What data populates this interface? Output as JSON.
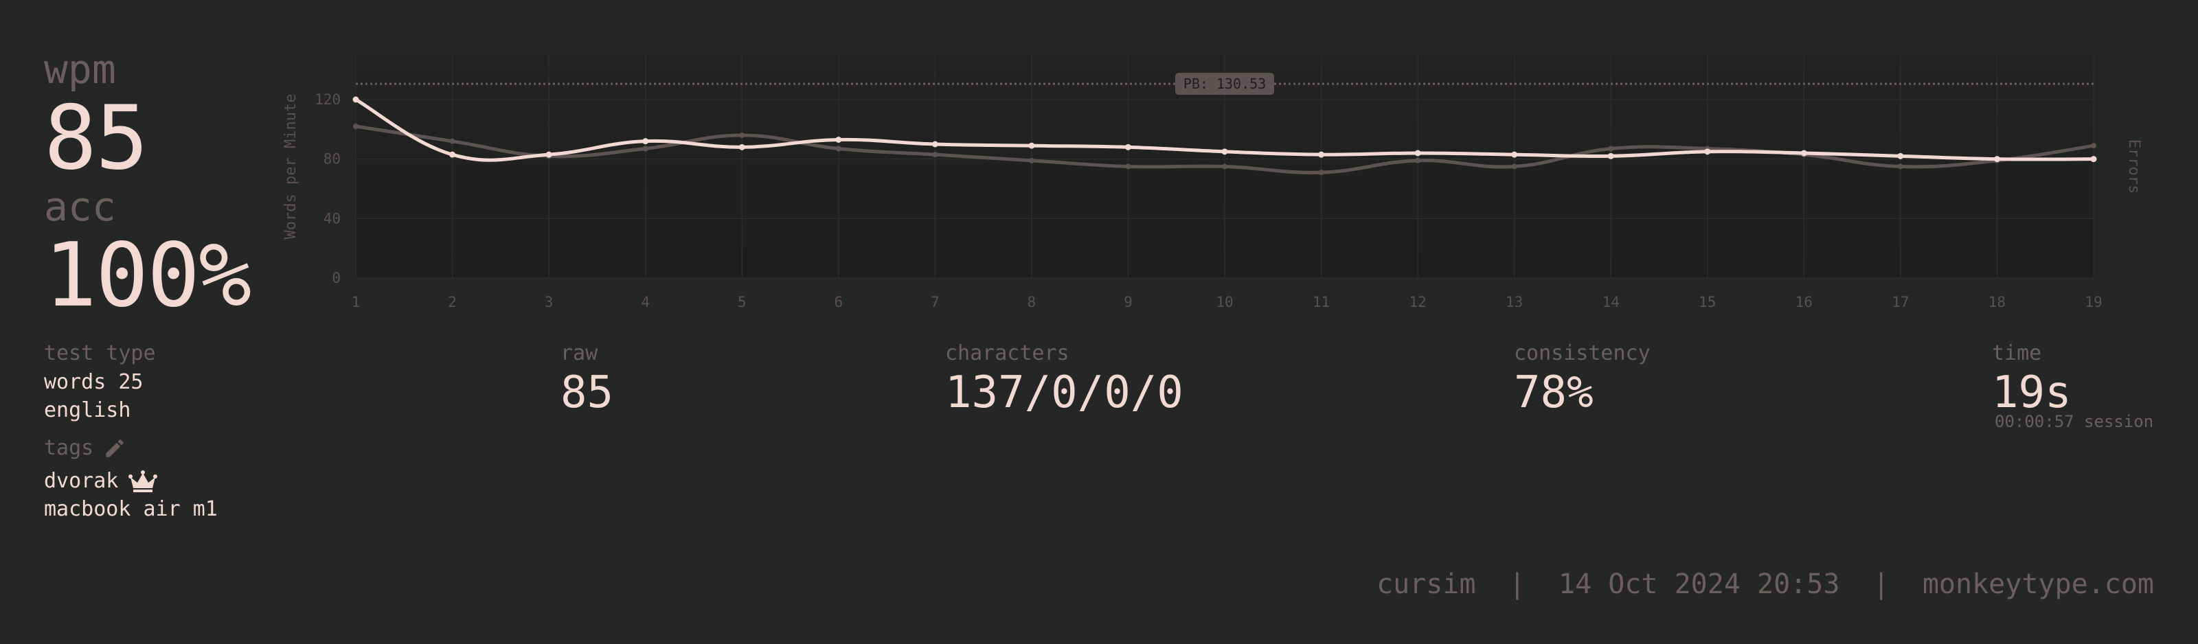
{
  "stats": {
    "wpm_label": "wpm",
    "wpm_value": "85",
    "acc_label": "acc",
    "acc_value": "100%"
  },
  "details": {
    "test_type_label": "test type",
    "test_type_line1": "words 25",
    "test_type_line2": "english",
    "tags_label": "tags",
    "tags": [
      "dvorak",
      "macbook air m1"
    ]
  },
  "metrics": {
    "raw_label": "raw",
    "raw_value": "85",
    "characters_label": "characters",
    "characters_value": "137/0/0/0",
    "consistency_label": "consistency",
    "consistency_value": "78%",
    "time_label": "time",
    "time_value": "19s",
    "session_value": "00:00:57 session"
  },
  "footer": {
    "user": "cursim",
    "separator": "|",
    "datetime": "14 Oct 2024 20:53",
    "site": "monkeytype.com"
  },
  "colors": {
    "background": "#252626",
    "text": "#f2d9d2",
    "muted": "#6b5e5e"
  },
  "icons": {
    "tags_edit": "pencil-icon",
    "dvorak_tag": "crown-icon"
  },
  "chart_data": {
    "type": "line",
    "x": [
      1,
      2,
      3,
      4,
      5,
      6,
      7,
      8,
      9,
      10,
      11,
      12,
      13,
      14,
      15,
      16,
      17,
      18,
      19
    ],
    "xticks": [
      "1",
      "2",
      "3",
      "4",
      "5",
      "6",
      "7",
      "8",
      "9",
      "10",
      "11",
      "12",
      "13",
      "14",
      "15",
      "16",
      "17",
      "18",
      "19"
    ],
    "yticks": [
      "0",
      "40",
      "80",
      "120"
    ],
    "ylim": [
      0,
      150
    ],
    "ylabel": "Words per Minute",
    "y2label": "Errors",
    "pb_label": "PB: 130.53",
    "pb_value": 130.53,
    "grid": true,
    "series": [
      {
        "role": "wpm",
        "color": "#f2d9d2",
        "values": [
          120,
          83,
          83,
          92,
          88,
          93,
          90,
          89,
          88,
          85,
          83,
          84,
          83,
          82,
          85,
          84,
          82,
          80,
          80
        ]
      },
      {
        "role": "raw",
        "color": "#5e5252",
        "values": [
          102,
          92,
          82,
          87,
          96,
          87,
          83,
          79,
          75,
          75,
          71,
          79,
          75,
          87,
          87,
          83,
          75,
          79,
          89
        ]
      }
    ]
  }
}
